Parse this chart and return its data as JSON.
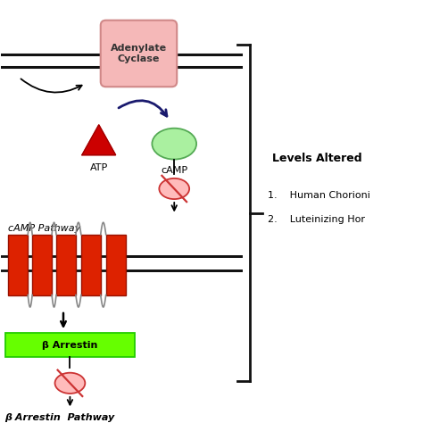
{
  "bg_color": "#ffffff",
  "membrane_color": "#111111",
  "adenylate_box_color": "#f5b8b8",
  "adenylate_text": "Adenylate\nCyclase",
  "atp_color": "#cc0000",
  "camp_fill": "#aaf0a0",
  "camp_edge": "#55aa55",
  "receptor_fill": "#dd2200",
  "receptor_edge": "#991100",
  "arrestin_fill": "#66ff00",
  "arrestin_edge": "#22cc00",
  "arrestin_text": "β Arrestin",
  "camp_label": "cAMP",
  "atp_label": "ATP",
  "camp_pathway_label": "cAMP Pathway",
  "arrestin_pathway_label": "β Arrestin  Pathway",
  "levels_altered_title": "Levels Altered",
  "levels_list": [
    "Human Chorioni",
    "Luteinizing Hor"
  ],
  "inhibit_fill": "#ffbbbb",
  "inhibit_edge": "#cc3333",
  "arrow_color": "#1a1a6e",
  "bracket_color": "#111111"
}
